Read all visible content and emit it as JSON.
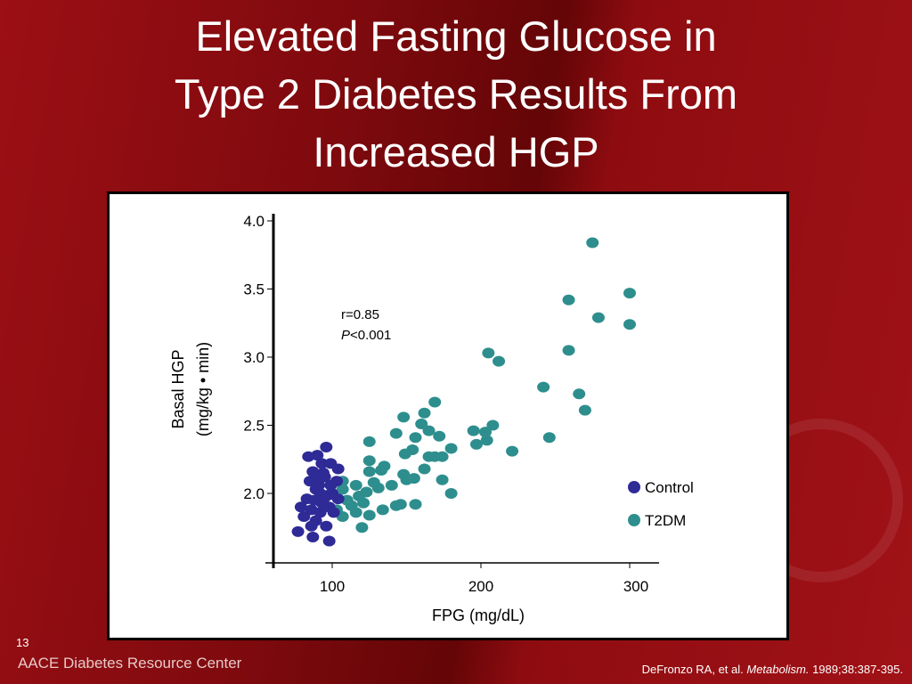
{
  "title_lines": [
    "Elevated Fasting Glucose in",
    "Type 2 Diabetes Results From",
    "Increased HGP"
  ],
  "slide_number": "13",
  "footer_brand": "AACE Diabetes Resource Center",
  "citation": {
    "authors": "DeFronzo RA, et al. ",
    "journal": "Metabolism.",
    "details": " 1989;38:387-395."
  },
  "chart_data": {
    "type": "scatter",
    "xlabel": "FPG (mg/dL)",
    "ylabel_lines": [
      "Basal HGP",
      "(mg/kg • min)"
    ],
    "xlim": [
      60,
      320
    ],
    "ylim": [
      1.5,
      4.0
    ],
    "xticks": [
      {
        "v": 100,
        "label": "100"
      },
      {
        "v": 200,
        "label": "200"
      },
      {
        "v": 300,
        "label": "300"
      }
    ],
    "yticks": [
      {
        "v": 2.0,
        "label": "2.0"
      },
      {
        "v": 2.5,
        "label": "2.5"
      },
      {
        "v": 3.0,
        "label": "3.0"
      },
      {
        "v": 3.5,
        "label": "3.5"
      },
      {
        "v": 4.0,
        "label": "4.0"
      }
    ],
    "annotation": {
      "r": "r=0.85",
      "p_italic": "P",
      "p_rest": "<0.001"
    },
    "legend_position": "right",
    "series": [
      {
        "name": "Control",
        "color": "#2e2a96",
        "points": [
          [
            77,
            1.72
          ],
          [
            87,
            1.68
          ],
          [
            98,
            1.65
          ],
          [
            96,
            2.34
          ],
          [
            90,
            2.28
          ],
          [
            84,
            2.27
          ],
          [
            93,
            2.22
          ],
          [
            99,
            2.22
          ],
          [
            104,
            2.18
          ],
          [
            87,
            2.16
          ],
          [
            95,
            2.12
          ],
          [
            99,
            2.06
          ],
          [
            89,
            2.03
          ],
          [
            83,
            1.96
          ],
          [
            95,
            1.97
          ],
          [
            104,
            1.96
          ],
          [
            79,
            1.9
          ],
          [
            86,
            1.88
          ],
          [
            92,
            1.86
          ],
          [
            98,
            1.9
          ],
          [
            81,
            1.83
          ],
          [
            89,
            1.8
          ],
          [
            96,
            1.76
          ],
          [
            86,
            1.76
          ],
          [
            101,
            1.86
          ],
          [
            103,
            2.09
          ],
          [
            91,
            2.06
          ],
          [
            85,
            2.09
          ],
          [
            93,
            1.93
          ],
          [
            98,
            1.99
          ],
          [
            92,
            2.0
          ],
          [
            88,
            1.95
          ],
          [
            94,
            2.15
          ],
          [
            100,
            2.0
          ],
          [
            90,
            2.12
          ]
        ]
      },
      {
        "name": "T2DM",
        "color": "#2e8e8e",
        "points": [
          [
            275,
            3.84
          ],
          [
            259,
            3.42
          ],
          [
            300,
            3.47
          ],
          [
            279,
            3.29
          ],
          [
            300,
            3.24
          ],
          [
            205,
            3.03
          ],
          [
            212,
            2.97
          ],
          [
            259,
            3.05
          ],
          [
            242,
            2.78
          ],
          [
            266,
            2.73
          ],
          [
            270,
            2.61
          ],
          [
            169,
            2.67
          ],
          [
            162,
            2.59
          ],
          [
            148,
            2.56
          ],
          [
            160,
            2.51
          ],
          [
            208,
            2.5
          ],
          [
            195,
            2.46
          ],
          [
            203,
            2.45
          ],
          [
            246,
            2.41
          ],
          [
            172,
            2.42
          ],
          [
            165,
            2.46
          ],
          [
            143,
            2.44
          ],
          [
            156,
            2.41
          ],
          [
            125,
            2.38
          ],
          [
            197,
            2.36
          ],
          [
            204,
            2.39
          ],
          [
            180,
            2.33
          ],
          [
            154,
            2.32
          ],
          [
            221,
            2.31
          ],
          [
            149,
            2.29
          ],
          [
            165,
            2.27
          ],
          [
            169,
            2.27
          ],
          [
            174,
            2.27
          ],
          [
            125,
            2.24
          ],
          [
            135,
            2.2
          ],
          [
            133,
            2.17
          ],
          [
            125,
            2.16
          ],
          [
            162,
            2.18
          ],
          [
            148,
            2.14
          ],
          [
            155,
            2.11
          ],
          [
            128,
            2.08
          ],
          [
            150,
            2.1
          ],
          [
            174,
            2.1
          ],
          [
            107,
            2.09
          ],
          [
            107,
            2.03
          ],
          [
            180,
            2.0
          ],
          [
            116,
            2.06
          ],
          [
            123,
            2.01
          ],
          [
            131,
            2.04
          ],
          [
            140,
            2.06
          ],
          [
            156,
            1.92
          ],
          [
            146,
            1.92
          ],
          [
            143,
            1.91
          ],
          [
            125,
            1.84
          ],
          [
            120,
            1.75
          ],
          [
            107,
            1.83
          ],
          [
            116,
            1.86
          ],
          [
            134,
            1.88
          ],
          [
            113,
            1.91
          ],
          [
            121,
            1.93
          ],
          [
            103,
            1.88
          ],
          [
            110,
            1.95
          ],
          [
            118,
            1.98
          ]
        ]
      }
    ]
  }
}
